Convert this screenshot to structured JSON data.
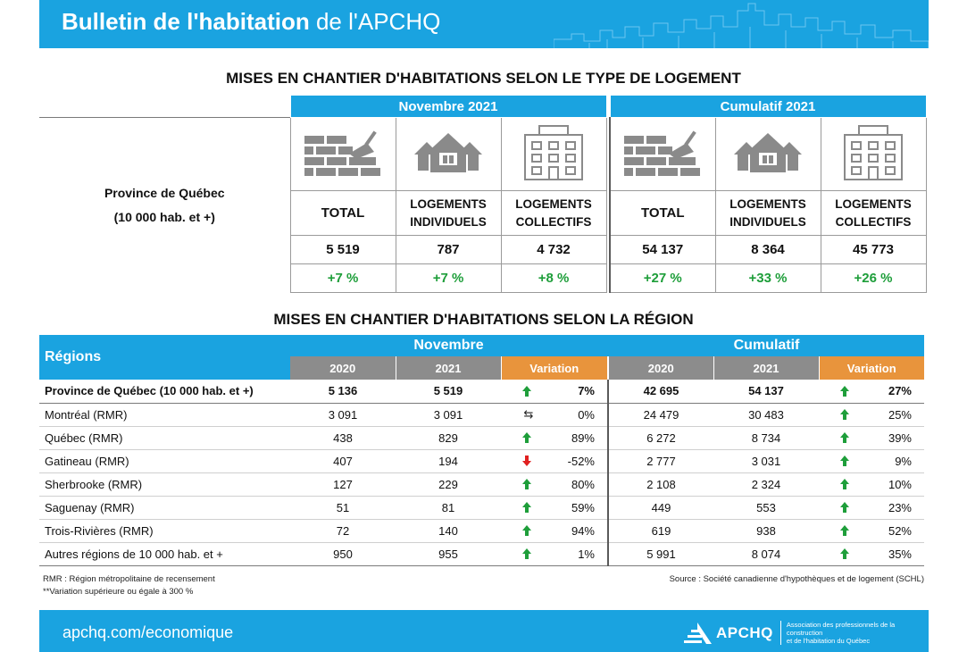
{
  "header": {
    "title_bold": "Bulletin de l'habitation",
    "title_light": " de l'APCHQ"
  },
  "section1": {
    "title": "MISES EN CHANTIER D'HABITATIONS SELON LE TYPE DE LOGEMENT",
    "group_month": "Novembre 2021",
    "group_cumul": "Cumulatif 2021",
    "province_line1": "Province de Québec",
    "province_line2": "(10 000 hab. et +)",
    "columns": [
      {
        "label1": "TOTAL",
        "label2": "",
        "icon": "bricks-trowel-icon",
        "value": "5 519",
        "change": "+7 %"
      },
      {
        "label1": "LOGEMENTS",
        "label2": "INDIVIDUELS",
        "icon": "house-icon",
        "value": "787",
        "change": "+7 %"
      },
      {
        "label1": "LOGEMENTS",
        "label2": "COLLECTIFS",
        "icon": "apartment-building-icon",
        "value": "4 732",
        "change": "+8 %"
      },
      {
        "label1": "TOTAL",
        "label2": "",
        "icon": "bricks-trowel-icon",
        "value": "54 137",
        "change": "+27 %"
      },
      {
        "label1": "LOGEMENTS",
        "label2": "INDIVIDUELS",
        "icon": "house-icon",
        "value": "8 364",
        "change": "+33 %"
      },
      {
        "label1": "LOGEMENTS",
        "label2": "COLLECTIFS",
        "icon": "apartment-building-icon",
        "value": "45 773",
        "change": "+26 %"
      }
    ]
  },
  "section2": {
    "title": "MISES EN CHANTIER D'HABITATIONS SELON LA RÉGION",
    "regions_header": "Régions",
    "group_month": "Novembre",
    "group_cumul": "Cumulatif",
    "sub_2020": "2020",
    "sub_2021": "2021",
    "sub_variation": "Variation",
    "rows": [
      {
        "name": "Province de Québec (10 000 hab. et +)",
        "m2020": "5 136",
        "m2021": "5 519",
        "mdir": "up",
        "mvar": "7%",
        "c2020": "42 695",
        "c2021": "54 137",
        "cdir": "up",
        "cvar": "27%"
      },
      {
        "name": "Montréal (RMR)",
        "m2020": "3 091",
        "m2021": "3 091",
        "mdir": "flat",
        "mvar": "0%",
        "c2020": "24 479",
        "c2021": "30 483",
        "cdir": "up",
        "cvar": "25%"
      },
      {
        "name": "Québec (RMR)",
        "m2020": "438",
        "m2021": "829",
        "mdir": "up",
        "mvar": "89%",
        "c2020": "6 272",
        "c2021": "8 734",
        "cdir": "up",
        "cvar": "39%"
      },
      {
        "name": "Gatineau (RMR)",
        "m2020": "407",
        "m2021": "194",
        "mdir": "down",
        "mvar": "-52%",
        "c2020": "2 777",
        "c2021": "3 031",
        "cdir": "up",
        "cvar": "9%"
      },
      {
        "name": "Sherbrooke (RMR)",
        "m2020": "127",
        "m2021": "229",
        "mdir": "up",
        "mvar": "80%",
        "c2020": "2 108",
        "c2021": "2 324",
        "cdir": "up",
        "cvar": "10%"
      },
      {
        "name": "Saguenay (RMR)",
        "m2020": "51",
        "m2021": "81",
        "mdir": "up",
        "mvar": "59%",
        "c2020": "449",
        "c2021": "553",
        "cdir": "up",
        "cvar": "23%"
      },
      {
        "name": "Trois-Rivières (RMR)",
        "m2020": "72",
        "m2021": "140",
        "mdir": "up",
        "mvar": "94%",
        "c2020": "619",
        "c2021": "938",
        "cdir": "up",
        "cvar": "52%"
      },
      {
        "name": "Autres régions de 10 000  hab. et +",
        "m2020": "950",
        "m2021": "955",
        "mdir": "up",
        "mvar": "1%",
        "c2020": "5 991",
        "c2021": "8 074",
        "cdir": "up",
        "cvar": "35%"
      }
    ]
  },
  "notes": {
    "rmr": "RMR : Région métropolitaine de recensement",
    "variation": "**Variation supérieure ou égale à 300 %",
    "source": "Source : Société canadienne d'hypothèques et de logement (SCHL)"
  },
  "footer": {
    "url": "apchq.com/economique",
    "logo_text": "APCHQ",
    "assoc_line1": "Association des professionnels de la construction",
    "assoc_line2": "et de l'habitation du Québec"
  },
  "colors": {
    "brand_blue": "#1aa3e0",
    "header_gray": "#8c8c8c",
    "variation_orange": "#e8943c",
    "positive_green": "#1e9e3a",
    "negative_red": "#e02020"
  }
}
